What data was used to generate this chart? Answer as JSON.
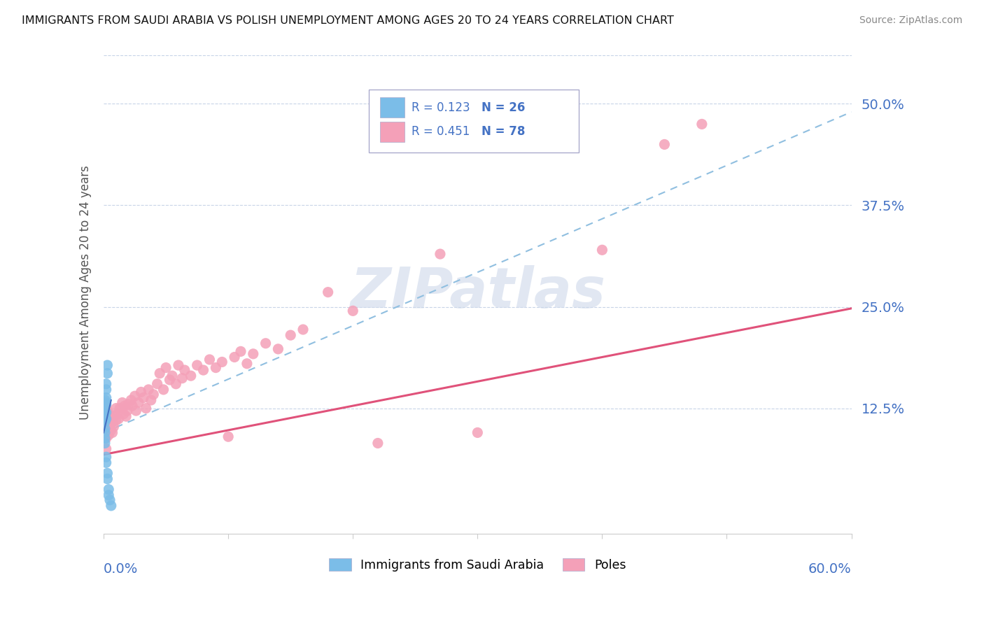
{
  "title": "IMMIGRANTS FROM SAUDI ARABIA VS POLISH UNEMPLOYMENT AMONG AGES 20 TO 24 YEARS CORRELATION CHART",
  "source": "Source: ZipAtlas.com",
  "ylabel_label": "Unemployment Among Ages 20 to 24 years",
  "ytick_labels": [
    "12.5%",
    "25.0%",
    "37.5%",
    "50.0%"
  ],
  "ytick_values": [
    0.125,
    0.25,
    0.375,
    0.5
  ],
  "legend_label1": "Immigrants from Saudi Arabia",
  "legend_label2": "Poles",
  "R1": 0.123,
  "N1": 26,
  "R2": 0.451,
  "N2": 78,
  "color_blue": "#7bbde8",
  "color_pink": "#f4a0b8",
  "color_trendline_blue": "#90bfe0",
  "color_trendline_pink": "#e0527a",
  "watermark_color": "#cdd8ea",
  "saudi_x": [
    0.001,
    0.001,
    0.001,
    0.001,
    0.001,
    0.001,
    0.001,
    0.001,
    0.001,
    0.001,
    0.002,
    0.002,
    0.002,
    0.002,
    0.002,
    0.002,
    0.002,
    0.002,
    0.003,
    0.003,
    0.003,
    0.003,
    0.004,
    0.004,
    0.005,
    0.006
  ],
  "saudi_y": [
    0.135,
    0.128,
    0.122,
    0.118,
    0.112,
    0.108,
    0.1,
    0.095,
    0.088,
    0.082,
    0.155,
    0.148,
    0.138,
    0.13,
    0.12,
    0.112,
    0.065,
    0.058,
    0.178,
    0.168,
    0.045,
    0.038,
    0.025,
    0.018,
    0.012,
    0.005
  ],
  "poles_x": [
    0.001,
    0.001,
    0.001,
    0.001,
    0.002,
    0.002,
    0.002,
    0.002,
    0.002,
    0.003,
    0.003,
    0.003,
    0.004,
    0.004,
    0.004,
    0.005,
    0.005,
    0.006,
    0.006,
    0.007,
    0.007,
    0.008,
    0.008,
    0.01,
    0.01,
    0.011,
    0.012,
    0.013,
    0.015,
    0.016,
    0.017,
    0.018,
    0.019,
    0.02,
    0.022,
    0.023,
    0.025,
    0.026,
    0.028,
    0.03,
    0.032,
    0.034,
    0.036,
    0.038,
    0.04,
    0.043,
    0.045,
    0.048,
    0.05,
    0.053,
    0.055,
    0.058,
    0.06,
    0.063,
    0.065,
    0.07,
    0.075,
    0.08,
    0.085,
    0.09,
    0.095,
    0.1,
    0.105,
    0.11,
    0.115,
    0.12,
    0.13,
    0.14,
    0.15,
    0.16,
    0.18,
    0.2,
    0.22,
    0.27,
    0.3,
    0.4,
    0.45,
    0.48
  ],
  "poles_y": [
    0.132,
    0.118,
    0.105,
    0.095,
    0.128,
    0.115,
    0.1,
    0.088,
    0.075,
    0.122,
    0.108,
    0.095,
    0.118,
    0.105,
    0.092,
    0.115,
    0.1,
    0.112,
    0.098,
    0.108,
    0.095,
    0.115,
    0.102,
    0.125,
    0.11,
    0.118,
    0.112,
    0.125,
    0.132,
    0.118,
    0.128,
    0.115,
    0.122,
    0.13,
    0.135,
    0.128,
    0.14,
    0.122,
    0.132,
    0.145,
    0.138,
    0.125,
    0.148,
    0.135,
    0.142,
    0.155,
    0.168,
    0.148,
    0.175,
    0.16,
    0.165,
    0.155,
    0.178,
    0.162,
    0.172,
    0.165,
    0.178,
    0.172,
    0.185,
    0.175,
    0.182,
    0.09,
    0.188,
    0.195,
    0.18,
    0.192,
    0.205,
    0.198,
    0.215,
    0.222,
    0.268,
    0.245,
    0.082,
    0.315,
    0.095,
    0.32,
    0.45,
    0.475
  ],
  "xlim": [
    0.0,
    0.6
  ],
  "ylim": [
    -0.03,
    0.565
  ],
  "poles_trend_y_at_0": 0.068,
  "poles_trend_y_at_60": 0.248,
  "saudi_trend_y_at_0": 0.095,
  "saudi_trend_y_at_60": 0.49
}
